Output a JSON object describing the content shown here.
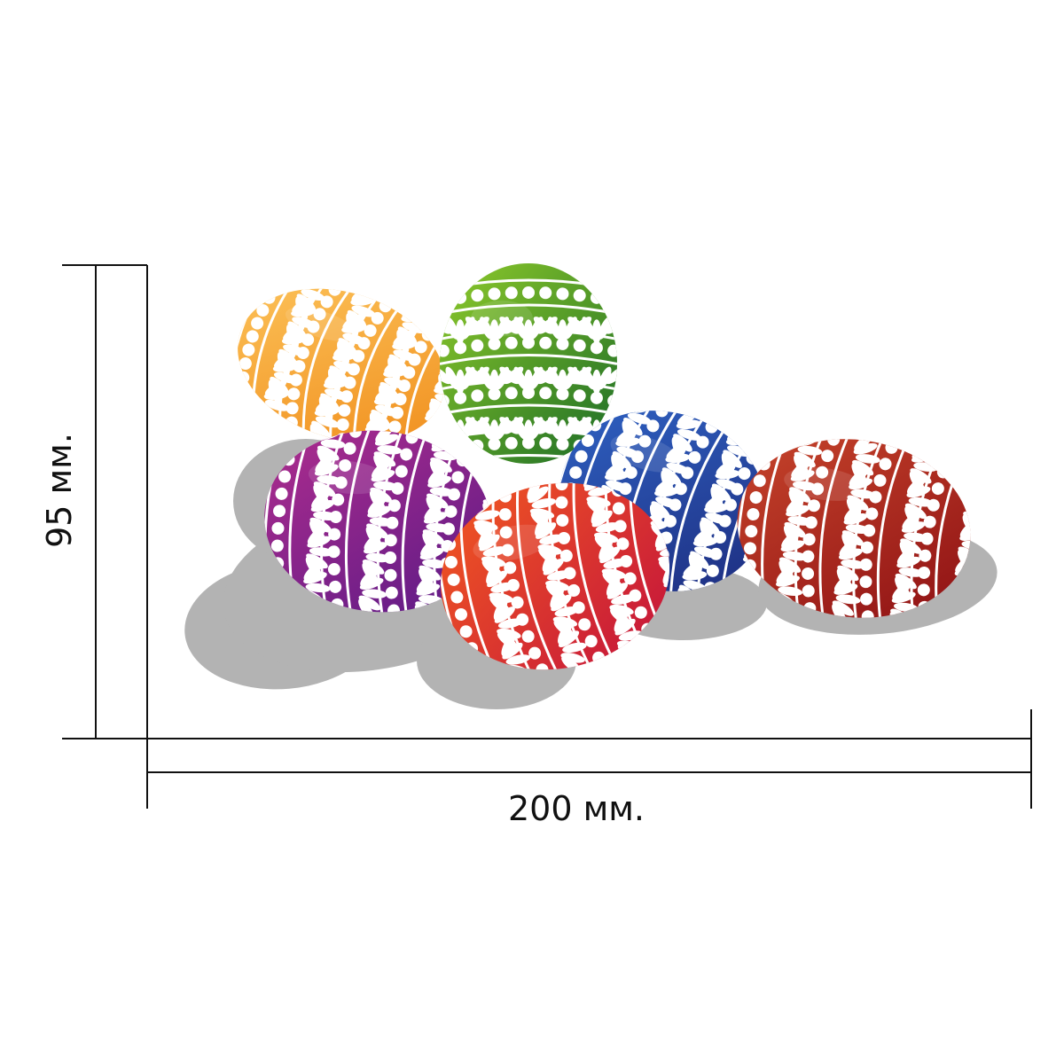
{
  "dimensions": {
    "width_label": "200 мм.",
    "height_label": "95 мм."
  },
  "line_color": "#111111",
  "shadow_color": "#b3b3b3",
  "pattern_color": "#ffffff",
  "eggs": [
    {
      "name": "egg-orange",
      "color": "orange",
      "c1": "#fcc35a",
      "c2": "#f08d1c"
    },
    {
      "name": "egg-green",
      "color": "green",
      "c1": "#8fcb2a",
      "c2": "#1a6b27"
    },
    {
      "name": "egg-purple",
      "color": "purple",
      "c1": "#b02d8e",
      "c2": "#5a1a86"
    },
    {
      "name": "egg-blue",
      "color": "blue",
      "c1": "#2f63c4",
      "c2": "#1d2b7d"
    },
    {
      "name": "egg-red",
      "color": "red",
      "c1": "#f25a21",
      "c2": "#c3123c"
    },
    {
      "name": "egg-crimson",
      "color": "crimson",
      "c1": "#c7452b",
      "c2": "#8d1014"
    }
  ]
}
